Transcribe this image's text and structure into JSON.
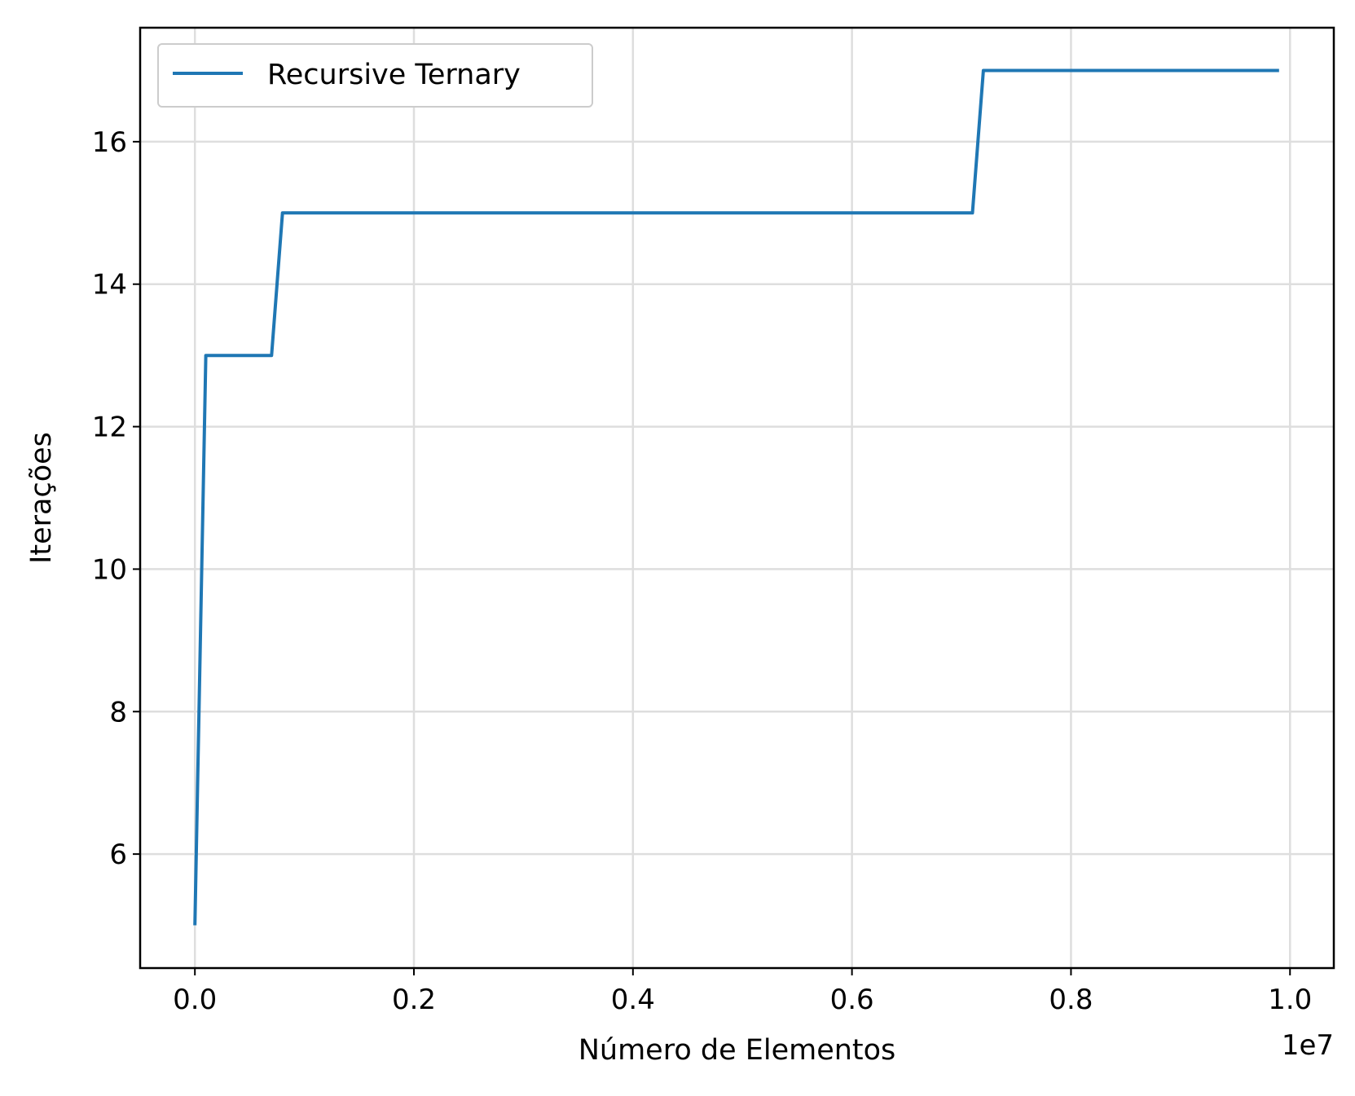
{
  "chart_data": {
    "type": "line",
    "title": "",
    "xlabel": "Número de Elementos",
    "ylabel": "Iterações",
    "x_offset_label": "1e7",
    "xlim": [
      -0.05,
      1.04
    ],
    "ylim": [
      4.4,
      17.6
    ],
    "x_ticks": [
      0.0,
      0.2,
      0.4,
      0.6,
      0.8,
      1.0
    ],
    "x_tick_labels": [
      "0.0",
      "0.2",
      "0.4",
      "0.6",
      "0.8",
      "1.0"
    ],
    "y_ticks": [
      6,
      8,
      10,
      12,
      14,
      16
    ],
    "y_tick_labels": [
      "6",
      "8",
      "10",
      "12",
      "14",
      "16"
    ],
    "grid": true,
    "legend_position": "upper-left",
    "series": [
      {
        "name": "Recursive Ternary",
        "color": "#1f77b4",
        "x": [
          0.0,
          0.01,
          0.07,
          0.08,
          0.71,
          0.72,
          0.99
        ],
        "y": [
          5,
          13,
          13,
          15,
          15,
          17,
          17
        ]
      }
    ]
  }
}
